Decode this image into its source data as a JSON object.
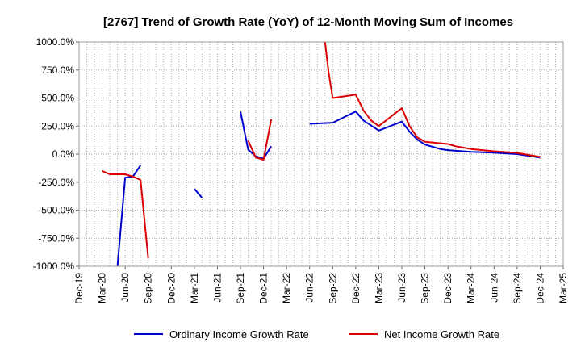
{
  "chart_data": {
    "type": "line",
    "title": "[2767]  Trend of Growth Rate (YoY) of 12-Month Moving Sum of Incomes",
    "xlabel": "",
    "ylabel": "",
    "x_ticks": [
      "Dec-19",
      "Mar-20",
      "Jun-20",
      "Sep-20",
      "Dec-20",
      "Mar-21",
      "Jun-21",
      "Sep-21",
      "Dec-21",
      "Mar-22",
      "Jun-22",
      "Sep-22",
      "Dec-22",
      "Mar-23",
      "Jun-23",
      "Sep-23",
      "Dec-23",
      "Mar-24",
      "Jun-24",
      "Sep-24",
      "Dec-24",
      "Mar-25"
    ],
    "x_range": [
      "2019-12",
      "2025-03"
    ],
    "y_ticks": [
      "1000.0%",
      "750.0%",
      "500.0%",
      "250.0%",
      "0.0%",
      "-250.0%",
      "-500.0%",
      "-750.0%",
      "-1000.0%"
    ],
    "y_range": [
      -1000,
      1000
    ],
    "y_unit": "%",
    "grid": true,
    "legend_position": "bottom",
    "series": [
      {
        "name": "Ordinary Income Growth Rate",
        "color": "#0000cc",
        "points": [
          [
            "2020-05",
            -1000
          ],
          [
            "2020-06",
            -210
          ],
          [
            "2020-07",
            -200
          ],
          [
            "2020-08",
            -100
          ],
          null,
          [
            "2021-03",
            -310
          ],
          [
            "2021-04",
            -390
          ],
          null,
          [
            "2021-09",
            380
          ],
          [
            "2021-10",
            40
          ],
          [
            "2021-11",
            -20
          ],
          [
            "2021-12",
            -40
          ],
          [
            "2022-01",
            70
          ],
          null,
          [
            "2022-06",
            270
          ],
          [
            "2022-09",
            280
          ],
          [
            "2022-12",
            380
          ],
          [
            "2023-01",
            300
          ],
          [
            "2023-03",
            210
          ],
          [
            "2023-06",
            290
          ],
          [
            "2023-07",
            200
          ],
          [
            "2023-08",
            130
          ],
          [
            "2023-09",
            85
          ],
          [
            "2023-11",
            45
          ],
          [
            "2023-12",
            35
          ],
          [
            "2024-03",
            20
          ],
          [
            "2024-06",
            12
          ],
          [
            "2024-09",
            0
          ],
          [
            "2024-12",
            -30
          ]
        ]
      },
      {
        "name": "Net Income Growth Rate",
        "color": "#dd0000",
        "points": [
          [
            "2020-03",
            -150
          ],
          [
            "2020-04",
            -180
          ],
          [
            "2020-06",
            -180
          ],
          [
            "2020-07",
            -200
          ],
          [
            "2020-08",
            -230
          ],
          [
            "2020-09",
            -930
          ],
          null,
          [
            "2021-10",
            120
          ],
          [
            "2021-11",
            -30
          ],
          [
            "2021-12",
            -50
          ],
          [
            "2022-01",
            310
          ],
          null,
          [
            "2022-08",
            1000
          ],
          [
            "2022-08-15",
            730
          ],
          [
            "2022-09",
            500
          ],
          [
            "2022-12",
            530
          ],
          [
            "2023-01",
            390
          ],
          [
            "2023-02",
            300
          ],
          [
            "2023-03",
            250
          ],
          [
            "2023-06",
            410
          ],
          [
            "2023-07",
            250
          ],
          [
            "2023-08",
            150
          ],
          [
            "2023-09",
            110
          ],
          [
            "2023-12",
            90
          ],
          [
            "2024-01",
            70
          ],
          [
            "2024-03",
            45
          ],
          [
            "2024-06",
            25
          ],
          [
            "2024-09",
            10
          ],
          [
            "2024-12",
            -25
          ]
        ]
      }
    ]
  }
}
